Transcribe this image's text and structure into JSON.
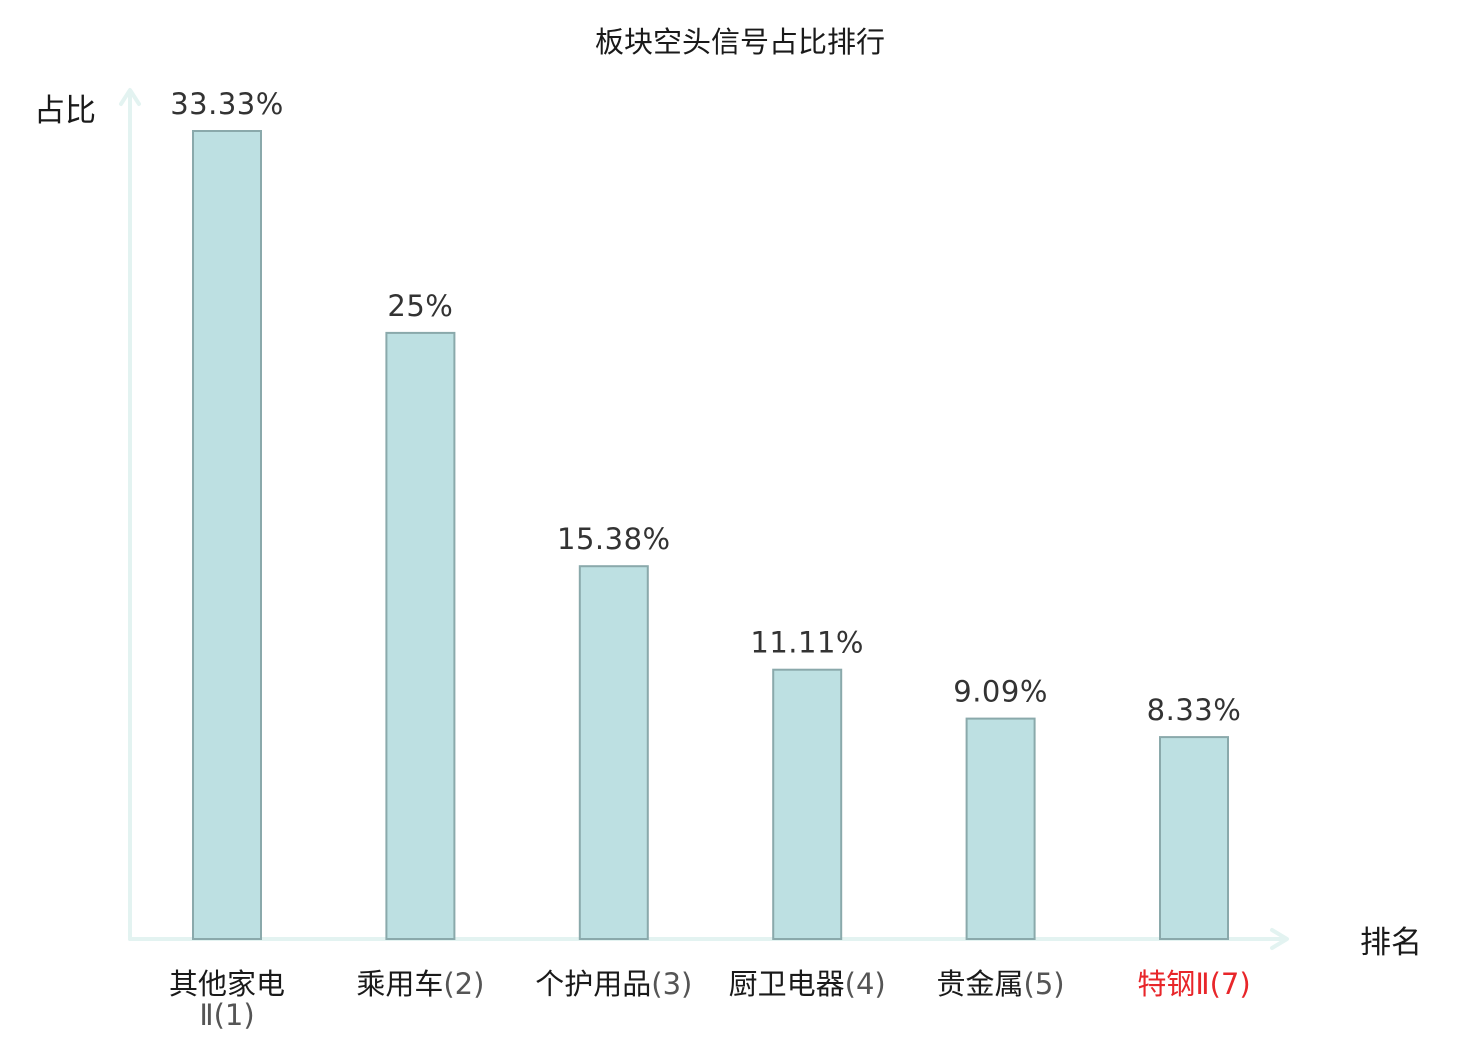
{
  "chart_data": {
    "type": "bar",
    "title": "板块空头信号占比排行",
    "ylabel": "占比",
    "xlabel": "排名",
    "categories": [
      {
        "name": "其他家电",
        "suffix": "Ⅱ(1)",
        "wrap": true,
        "highlight": false
      },
      {
        "name": "乘用车",
        "suffix": "(2)",
        "wrap": false,
        "highlight": false
      },
      {
        "name": "个护用品",
        "suffix": "(3)",
        "wrap": false,
        "highlight": false
      },
      {
        "name": "厨卫电器",
        "suffix": "(4)",
        "wrap": false,
        "highlight": false
      },
      {
        "name": "贵金属",
        "suffix": "(5)",
        "wrap": false,
        "highlight": false
      },
      {
        "name": "特钢",
        "suffix": "Ⅱ(7)",
        "wrap": false,
        "highlight": true
      }
    ],
    "values": [
      33.33,
      25,
      15.38,
      11.11,
      9.09,
      8.33
    ],
    "value_labels": [
      "33.33%",
      "25%",
      "15.38%",
      "11.11%",
      "9.09%",
      "8.33%"
    ],
    "ylim": [
      0,
      33.33
    ],
    "grid": false,
    "legend": "none",
    "colors": {
      "bar_fill": "#bde0e2",
      "bar_stroke": "#8aa9ab",
      "axis": "#e3f3f1",
      "highlight_label": "#e8262a",
      "label_text": "#1a1a1a",
      "rank_text": "#555555",
      "value_text": "#333333"
    }
  }
}
